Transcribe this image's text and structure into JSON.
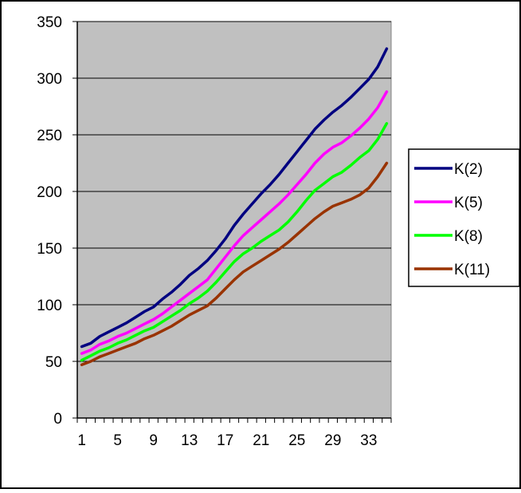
{
  "chart_data": {
    "type": "line",
    "x": [
      1,
      2,
      3,
      4,
      5,
      6,
      7,
      8,
      9,
      10,
      11,
      12,
      13,
      14,
      15,
      16,
      17,
      18,
      19,
      20,
      21,
      22,
      23,
      24,
      25,
      26,
      27,
      28,
      29,
      30,
      31,
      32,
      33,
      34,
      35
    ],
    "x_tick_labels": [
      "1",
      "5",
      "9",
      "13",
      "17",
      "21",
      "25",
      "29",
      "33"
    ],
    "x_tick_values": [
      1,
      5,
      9,
      13,
      17,
      21,
      25,
      29,
      33
    ],
    "ylim": [
      0,
      350
    ],
    "y_ticks": [
      0,
      50,
      100,
      150,
      200,
      250,
      300,
      350
    ],
    "grid": true,
    "plot_background": "#c0c0c0",
    "legend_position": "right",
    "series": [
      {
        "name": "K(2)",
        "color": "#000080",
        "values": [
          63,
          66,
          72,
          76,
          80,
          84,
          89,
          94,
          98,
          105,
          111,
          118,
          126,
          132,
          139,
          148,
          158,
          170,
          180,
          189,
          198,
          206,
          215,
          225,
          235,
          245,
          255,
          263,
          270,
          276,
          283,
          291,
          299,
          310,
          326
        ]
      },
      {
        "name": "K(5)",
        "color": "#ff00ff",
        "values": [
          57,
          60,
          65,
          68,
          72,
          75,
          79,
          83,
          87,
          92,
          98,
          104,
          110,
          116,
          122,
          132,
          142,
          152,
          161,
          168,
          175,
          182,
          189,
          197,
          206,
          215,
          225,
          233,
          239,
          243,
          249,
          256,
          264,
          274,
          288
        ]
      },
      {
        "name": "K(8)",
        "color": "#00ff00",
        "values": [
          51,
          55,
          59,
          62,
          66,
          69,
          73,
          77,
          80,
          85,
          90,
          95,
          101,
          106,
          112,
          120,
          129,
          138,
          145,
          150,
          156,
          161,
          166,
          173,
          182,
          192,
          201,
          207,
          213,
          217,
          223,
          230,
          236,
          246,
          260
        ]
      },
      {
        "name": "K(11)",
        "color": "#993300",
        "values": [
          47,
          50,
          54,
          57,
          60,
          63,
          66,
          70,
          73,
          77,
          81,
          86,
          91,
          95,
          99,
          106,
          114,
          122,
          129,
          134,
          139,
          144,
          149,
          155,
          162,
          169,
          176,
          182,
          187,
          190,
          193,
          197,
          203,
          213,
          225
        ]
      }
    ]
  }
}
